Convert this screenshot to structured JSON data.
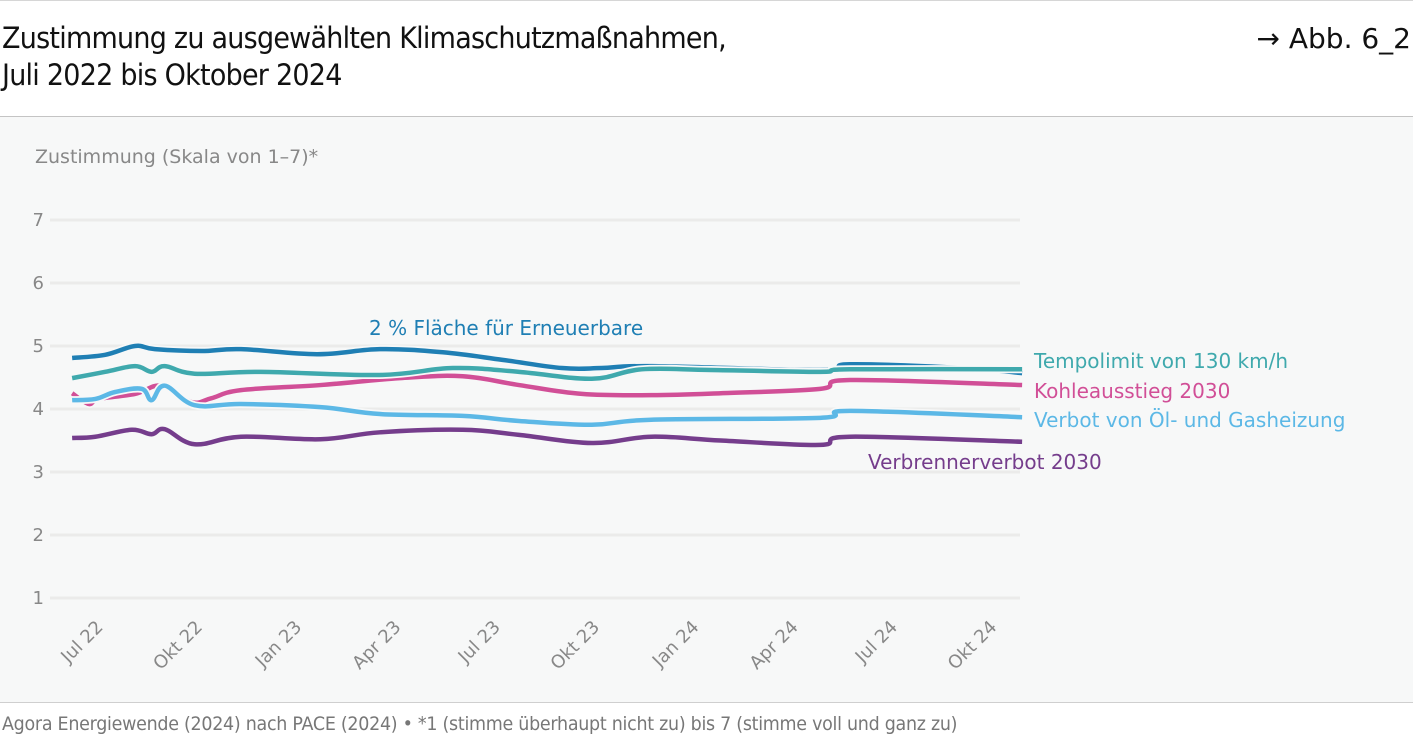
{
  "header": {
    "title_line1": "Zustimmung zu ausgewählten Klimaschutzmaßnahmen,",
    "title_line2": "Juli 2022 bis Oktober 2024",
    "figure_ref": "→ Abb. 6_2"
  },
  "footer": {
    "source": "Agora Energiewende (2024) nach PACE (2024) • *1 (stimme überhaupt nicht zu) bis 7 (stimme voll und ganz zu)"
  },
  "chart_data": {
    "type": "line",
    "title": "Zustimmung zu ausgewählten Klimaschutzmaßnahmen, Juli 2022 bis Oktober 2024",
    "ylabel": "Zustimmung (Skala von 1–7)*",
    "xlabel": "",
    "ylim": [
      1,
      7
    ],
    "yticks": [
      1,
      2,
      3,
      4,
      5,
      6,
      7
    ],
    "x_unit": "months since Jul 2022",
    "xlim": [
      -0.6,
      28.1
    ],
    "xticks": [
      {
        "label": "Jul 22",
        "x": 0
      },
      {
        "label": "Okt 22",
        "x": 3
      },
      {
        "label": "Jan 23",
        "x": 6
      },
      {
        "label": "Apr 23",
        "x": 9
      },
      {
        "label": "Jul 23",
        "x": 12
      },
      {
        "label": "Okt 23",
        "x": 15
      },
      {
        "label": "Jan 24",
        "x": 18
      },
      {
        "label": "Apr 24",
        "x": 21
      },
      {
        "label": "Jul 24",
        "x": 24
      },
      {
        "label": "Okt 24",
        "x": 27
      }
    ],
    "grid": true,
    "legend": "direct labels at line ends",
    "series": [
      {
        "name": "2 % Fläche für Erneuerbare",
        "color": "#1f7fb4",
        "label_position": "above-middle",
        "x": [
          -0.6,
          0.4,
          1.3,
          1.9,
          3.3,
          4.5,
          6.8,
          8.7,
          10.6,
          12.4,
          14.2,
          15.4,
          16.9,
          22.0,
          22.9,
          26.3,
          28.1
        ],
        "values": [
          4.81,
          4.86,
          5.0,
          4.95,
          4.92,
          4.95,
          4.87,
          4.95,
          4.9,
          4.78,
          4.65,
          4.65,
          4.68,
          4.62,
          4.71,
          4.65,
          4.57
        ]
      },
      {
        "name": "Tempolimit von 130 km/h",
        "color": "#3fa9ad",
        "label_position": "right",
        "x": [
          -0.6,
          0.4,
          1.3,
          1.8,
          2.2,
          3.1,
          5.1,
          8.7,
          10.9,
          12.9,
          15.1,
          16.6,
          18.7,
          22.0,
          22.9,
          28.1
        ],
        "values": [
          4.49,
          4.59,
          4.68,
          4.59,
          4.68,
          4.56,
          4.59,
          4.54,
          4.65,
          4.59,
          4.48,
          4.63,
          4.62,
          4.59,
          4.63,
          4.63
        ]
      },
      {
        "name": "Kohleausstieg 2030",
        "color": "#d14f97",
        "label_position": "right",
        "x": [
          -0.6,
          -0.1,
          0.2,
          1.3,
          2.1,
          3.0,
          3.6,
          4.5,
          6.9,
          9.3,
          11.2,
          12.9,
          14.8,
          16.9,
          19.0,
          22.0,
          22.9,
          28.1
        ],
        "values": [
          4.25,
          4.08,
          4.16,
          4.24,
          4.37,
          4.11,
          4.17,
          4.3,
          4.38,
          4.49,
          4.52,
          4.38,
          4.24,
          4.22,
          4.25,
          4.32,
          4.46,
          4.38
        ]
      },
      {
        "name": "Verbot von Öl- und Gasheizung",
        "color": "#5cb8e6",
        "label_position": "right",
        "x": [
          -0.6,
          0.1,
          0.7,
          1.5,
          1.8,
          2.2,
          3.1,
          4.5,
          6.9,
          8.7,
          11.2,
          12.9,
          15.1,
          16.9,
          22.0,
          22.9,
          28.1
        ],
        "values": [
          4.14,
          4.16,
          4.27,
          4.32,
          4.14,
          4.37,
          4.06,
          4.08,
          4.03,
          3.92,
          3.89,
          3.81,
          3.75,
          3.83,
          3.86,
          3.97,
          3.87
        ]
      },
      {
        "name": "Verbrennerverbot 2030",
        "color": "#753d8c",
        "label_position": "below-right",
        "x": [
          -0.6,
          0.1,
          1.2,
          1.8,
          2.2,
          3.1,
          4.5,
          6.9,
          8.7,
          11.2,
          12.9,
          15.1,
          16.9,
          19.0,
          22.0,
          22.9,
          28.1
        ],
        "values": [
          3.54,
          3.56,
          3.67,
          3.6,
          3.68,
          3.44,
          3.56,
          3.52,
          3.63,
          3.67,
          3.59,
          3.46,
          3.56,
          3.5,
          3.43,
          3.56,
          3.48
        ]
      }
    ]
  }
}
